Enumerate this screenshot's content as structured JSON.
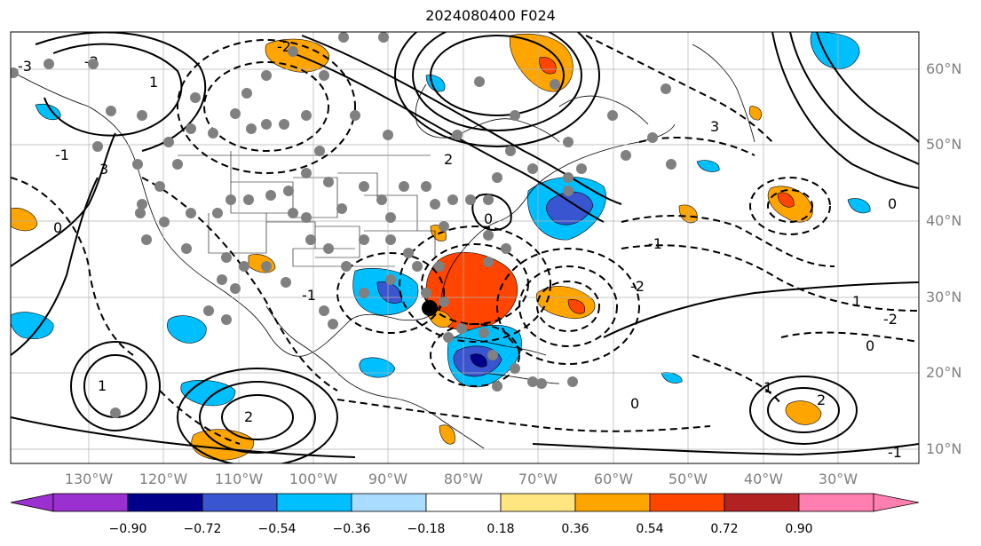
{
  "title": "2024080400 F024",
  "map": {
    "lat_labels": [
      "60°N",
      "50°N",
      "40°N",
      "30°N",
      "20°N",
      "10°N"
    ],
    "lon_labels": [
      "130°W",
      "120°W",
      "110°W",
      "100°W",
      "90°W",
      "80°W",
      "70°W",
      "60°W",
      "50°W",
      "40°W",
      "30°W"
    ],
    "contour_labels": [
      "-3",
      "-2",
      "-1",
      "0",
      "1",
      "2",
      "3",
      "-2",
      "-1",
      "0",
      "1",
      "-1",
      "-2",
      "0",
      "1",
      "2",
      "3",
      "-2",
      "0",
      "1",
      "0",
      "-1",
      "2"
    ]
  },
  "colorbar": {
    "tick_labels": [
      "−0.90",
      "−0.72",
      "−0.54",
      "−0.36",
      "−0.18",
      "0.18",
      "0.36",
      "0.54",
      "0.72",
      "0.90"
    ],
    "colors": [
      "#9b30d0",
      "#00008b",
      "#3a55d0",
      "#00bfff",
      "#aadcff",
      "#ffffff",
      "#ffe680",
      "#ffa500",
      "#ff4500",
      "#b22222",
      "#ff80b0"
    ]
  }
}
